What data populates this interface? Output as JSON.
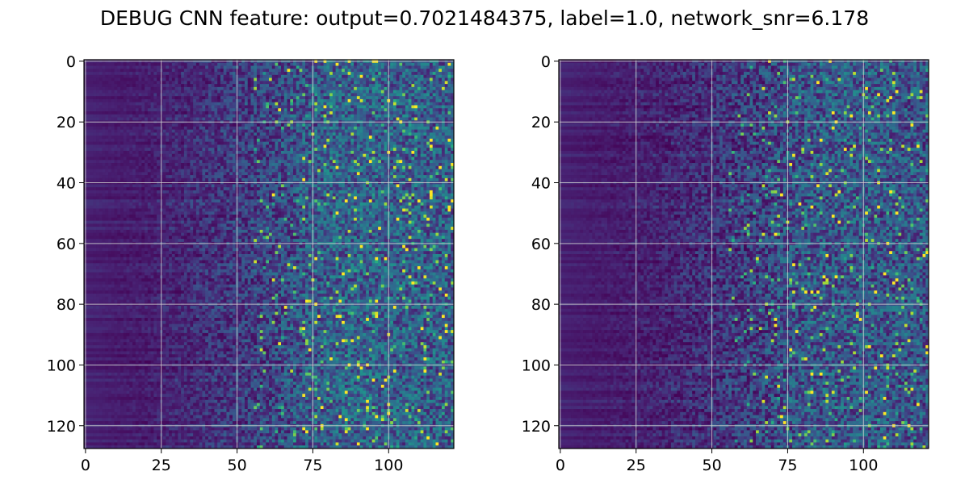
{
  "figure": {
    "title": "DEBUG CNN feature: output=0.7021484375, label=1.0, network_snr=6.178"
  },
  "chart_data": [
    {
      "type": "heatmap",
      "title": "",
      "xlabel": "",
      "ylabel": "",
      "colormap": "viridis",
      "grid": true,
      "n_rows": 128,
      "n_cols": 122,
      "xlim": [
        -0.5,
        121.5
      ],
      "ylim": [
        127.5,
        -0.5
      ],
      "xticks": [
        0,
        25,
        50,
        75,
        100
      ],
      "yticks": [
        0,
        20,
        40,
        60,
        80,
        100,
        120
      ],
      "value_range": [
        0,
        1
      ],
      "column_mean_profile": {
        "columns": [
          0,
          10,
          20,
          25,
          35,
          45,
          55,
          65,
          75,
          85,
          95,
          105,
          121
        ],
        "mean_value": [
          0.12,
          0.1,
          0.1,
          0.12,
          0.14,
          0.17,
          0.2,
          0.24,
          0.3,
          0.32,
          0.32,
          0.31,
          0.3
        ]
      },
      "peak_value": 1.0
    },
    {
      "type": "heatmap",
      "title": "",
      "xlabel": "",
      "ylabel": "",
      "colormap": "viridis",
      "grid": true,
      "n_rows": 128,
      "n_cols": 122,
      "xlim": [
        -0.5,
        121.5
      ],
      "ylim": [
        127.5,
        -0.5
      ],
      "xticks": [
        0,
        25,
        50,
        75,
        100
      ],
      "yticks": [
        0,
        20,
        40,
        60,
        80,
        100,
        120
      ],
      "value_range": [
        0,
        1
      ],
      "column_mean_profile": {
        "columns": [
          0,
          10,
          20,
          25,
          35,
          45,
          55,
          65,
          75,
          85,
          95,
          105,
          121
        ],
        "mean_value": [
          0.12,
          0.1,
          0.1,
          0.11,
          0.12,
          0.14,
          0.17,
          0.2,
          0.26,
          0.28,
          0.29,
          0.28,
          0.27
        ]
      },
      "peak_value": 1.0
    }
  ]
}
